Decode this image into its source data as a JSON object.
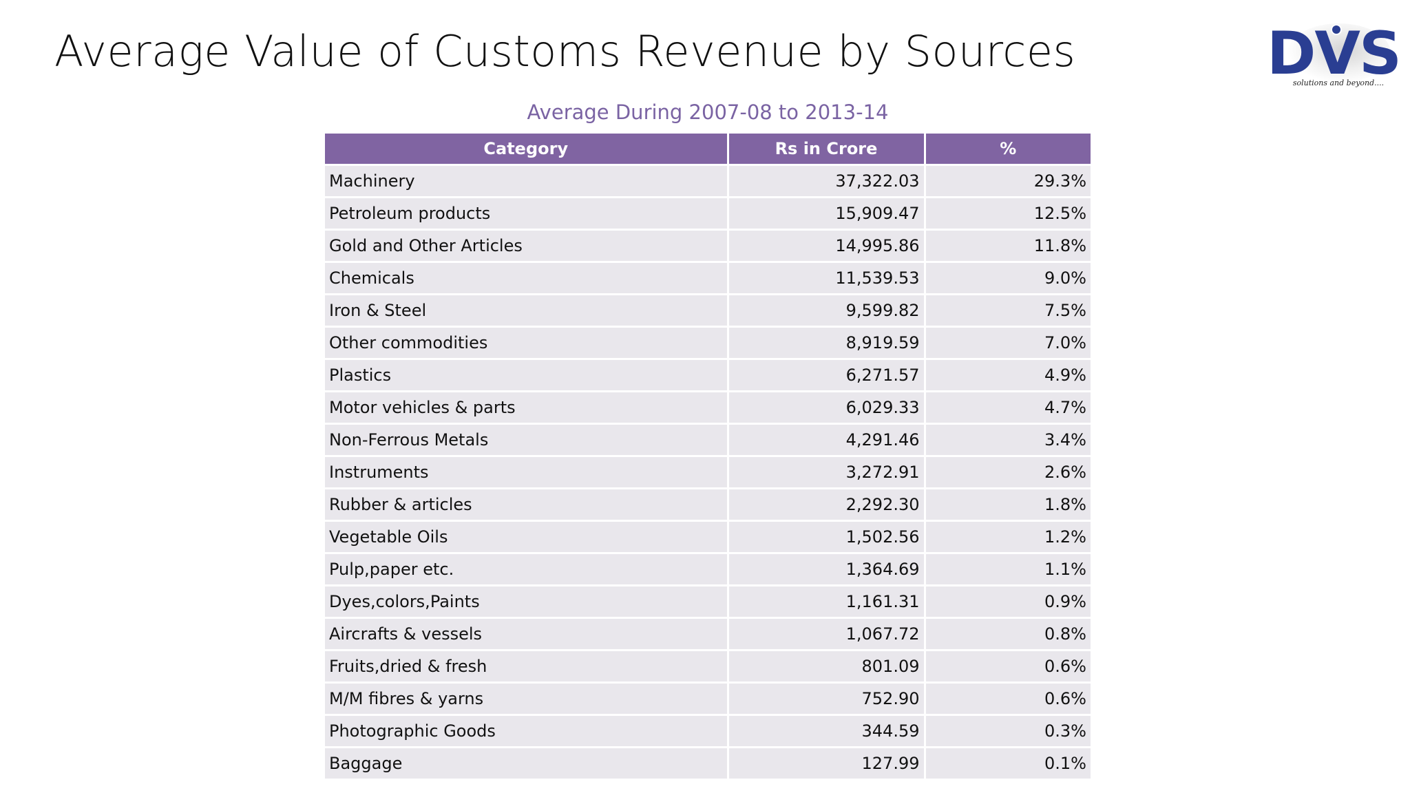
{
  "slide": {
    "title": "Average Value of Customs Revenue by Sources"
  },
  "logo": {
    "text": "DVS",
    "tagline": "solutions and beyond....",
    "color": "#2a3e92"
  },
  "table": {
    "caption": "Average During 2007-08 to 2013-14",
    "header_color": "#8064a2",
    "row_color": "#e9e7ec",
    "columns": [
      "Category",
      "Rs in Crore",
      "%"
    ],
    "rows": [
      {
        "category": "Machinery",
        "value": "37,322.03",
        "percent": "29.3%"
      },
      {
        "category": "Petroleum products",
        "value": "15,909.47",
        "percent": "12.5%"
      },
      {
        "category": "Gold and Other Articles",
        "value": "14,995.86",
        "percent": "11.8%"
      },
      {
        "category": "Chemicals",
        "value": "11,539.53",
        "percent": "9.0%"
      },
      {
        "category": "Iron & Steel",
        "value": "9,599.82",
        "percent": "7.5%"
      },
      {
        "category": "Other commodities",
        "value": "8,919.59",
        "percent": "7.0%"
      },
      {
        "category": "Plastics",
        "value": "6,271.57",
        "percent": "4.9%"
      },
      {
        "category": "Motor vehicles & parts",
        "value": "6,029.33",
        "percent": "4.7%"
      },
      {
        "category": "Non-Ferrous Metals",
        "value": "4,291.46",
        "percent": "3.4%"
      },
      {
        "category": "Instruments",
        "value": "3,272.91",
        "percent": "2.6%"
      },
      {
        "category": "Rubber & articles",
        "value": "2,292.30",
        "percent": "1.8%"
      },
      {
        "category": "Vegetable Oils",
        "value": "1,502.56",
        "percent": "1.2%"
      },
      {
        "category": "Pulp,paper etc.",
        "value": "1,364.69",
        "percent": "1.1%"
      },
      {
        "category": "Dyes,colors,Paints",
        "value": "1,161.31",
        "percent": "0.9%"
      },
      {
        "category": "Aircrafts & vessels",
        "value": "1,067.72",
        "percent": "0.8%"
      },
      {
        "category": "Fruits,dried & fresh",
        "value": "801.09",
        "percent": "0.6%"
      },
      {
        "category": "M/M fibres & yarns",
        "value": "752.90",
        "percent": "0.6%"
      },
      {
        "category": "Photographic Goods",
        "value": "344.59",
        "percent": "0.3%"
      },
      {
        "category": "Baggage",
        "value": "127.99",
        "percent": "0.1%"
      }
    ]
  }
}
